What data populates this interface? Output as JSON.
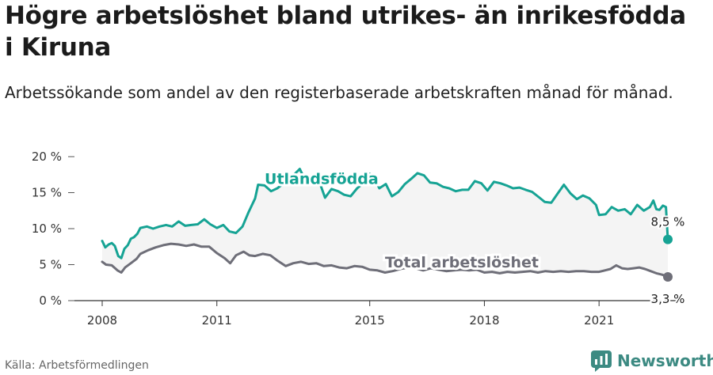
{
  "header": {
    "title": "Högre arbetslöshet bland utrikes- än inrikesfödda i Kiruna",
    "subtitle": "Arbetssökande som andel av den registerbaserade arbetskraften månad för månad."
  },
  "footer": {
    "source": "Källa: Arbetsförmedlingen",
    "brand": "Newsworthy",
    "brand_icon": "newsworthy-logo-icon",
    "brand_color": "#3c8a82"
  },
  "chart_data": {
    "type": "line",
    "title": "",
    "xlabel": "",
    "ylabel": "",
    "x_unit": "year",
    "xlim": [
      2008,
      2022.8
    ],
    "ylim": [
      0,
      20
    ],
    "x_ticks": [
      2008,
      2011,
      2015,
      2018,
      2021
    ],
    "x_tick_labels": [
      "2008",
      "2011",
      "2015",
      "2018",
      "2021"
    ],
    "y_ticks": [
      0,
      5,
      10,
      15,
      20
    ],
    "y_tick_labels": [
      "0 %",
      "5 %",
      "10 %",
      "15 %",
      "20 %"
    ],
    "grid": false,
    "shaded_between_series": true,
    "shade_color": "#f4f4f4",
    "series": [
      {
        "name": "Utlandsfödda",
        "color": "#16a394",
        "end_label": "8,5 %",
        "points": [
          [
            2008.0,
            8.3
          ],
          [
            2008.08,
            7.4
          ],
          [
            2008.17,
            7.8
          ],
          [
            2008.25,
            8.0
          ],
          [
            2008.33,
            7.6
          ],
          [
            2008.42,
            6.2
          ],
          [
            2008.5,
            5.9
          ],
          [
            2008.58,
            7.2
          ],
          [
            2008.67,
            7.7
          ],
          [
            2008.75,
            8.6
          ],
          [
            2008.83,
            8.8
          ],
          [
            2008.92,
            9.3
          ],
          [
            2009.0,
            10.1
          ],
          [
            2009.17,
            10.3
          ],
          [
            2009.33,
            10.0
          ],
          [
            2009.5,
            10.3
          ],
          [
            2009.67,
            10.5
          ],
          [
            2009.83,
            10.3
          ],
          [
            2010.0,
            11.0
          ],
          [
            2010.17,
            10.4
          ],
          [
            2010.33,
            10.5
          ],
          [
            2010.5,
            10.6
          ],
          [
            2010.67,
            11.3
          ],
          [
            2010.83,
            10.6
          ],
          [
            2011.0,
            10.1
          ],
          [
            2011.17,
            10.5
          ],
          [
            2011.33,
            9.6
          ],
          [
            2011.5,
            9.4
          ],
          [
            2011.67,
            10.3
          ],
          [
            2011.83,
            12.3
          ],
          [
            2012.0,
            14.2
          ],
          [
            2012.08,
            16.1
          ],
          [
            2012.25,
            16.0
          ],
          [
            2012.42,
            15.2
          ],
          [
            2012.58,
            15.6
          ],
          [
            2012.75,
            16.3
          ],
          [
            2012.92,
            17.2
          ],
          [
            2013.0,
            17.4
          ],
          [
            2013.17,
            18.3
          ],
          [
            2013.33,
            16.5
          ],
          [
            2013.5,
            16.9
          ],
          [
            2013.67,
            16.7
          ],
          [
            2013.83,
            14.3
          ],
          [
            2014.0,
            15.5
          ],
          [
            2014.17,
            15.2
          ],
          [
            2014.33,
            14.7
          ],
          [
            2014.5,
            14.5
          ],
          [
            2014.67,
            15.6
          ],
          [
            2014.83,
            16.3
          ],
          [
            2014.92,
            17.8
          ],
          [
            2015.08,
            17.4
          ],
          [
            2015.25,
            15.6
          ],
          [
            2015.42,
            16.2
          ],
          [
            2015.58,
            14.5
          ],
          [
            2015.75,
            15.1
          ],
          [
            2015.92,
            16.2
          ],
          [
            2016.08,
            16.9
          ],
          [
            2016.25,
            17.7
          ],
          [
            2016.42,
            17.4
          ],
          [
            2016.58,
            16.4
          ],
          [
            2016.75,
            16.3
          ],
          [
            2016.92,
            15.8
          ],
          [
            2017.08,
            15.6
          ],
          [
            2017.25,
            15.2
          ],
          [
            2017.42,
            15.4
          ],
          [
            2017.58,
            15.4
          ],
          [
            2017.75,
            16.6
          ],
          [
            2017.92,
            16.3
          ],
          [
            2018.08,
            15.3
          ],
          [
            2018.25,
            16.5
          ],
          [
            2018.42,
            16.3
          ],
          [
            2018.58,
            16.0
          ],
          [
            2018.75,
            15.6
          ],
          [
            2018.92,
            15.7
          ],
          [
            2019.08,
            15.4
          ],
          [
            2019.25,
            15.1
          ],
          [
            2019.42,
            14.4
          ],
          [
            2019.58,
            13.7
          ],
          [
            2019.75,
            13.6
          ],
          [
            2019.92,
            14.9
          ],
          [
            2020.08,
            16.1
          ],
          [
            2020.25,
            14.9
          ],
          [
            2020.42,
            14.1
          ],
          [
            2020.58,
            14.6
          ],
          [
            2020.75,
            14.2
          ],
          [
            2020.92,
            13.3
          ],
          [
            2021.0,
            11.9
          ],
          [
            2021.17,
            12.0
          ],
          [
            2021.33,
            13.0
          ],
          [
            2021.5,
            12.5
          ],
          [
            2021.67,
            12.7
          ],
          [
            2021.83,
            12.0
          ],
          [
            2022.0,
            13.3
          ],
          [
            2022.17,
            12.5
          ],
          [
            2022.33,
            13.0
          ],
          [
            2022.42,
            13.9
          ],
          [
            2022.5,
            12.7
          ],
          [
            2022.58,
            12.6
          ],
          [
            2022.67,
            13.2
          ],
          [
            2022.75,
            13.0
          ],
          [
            2022.8,
            8.5
          ]
        ]
      },
      {
        "name": "Total arbetslöshet",
        "color": "#6e6e78",
        "end_label": "3,3 %",
        "points": [
          [
            2008.0,
            5.4
          ],
          [
            2008.1,
            5.0
          ],
          [
            2008.25,
            4.9
          ],
          [
            2008.4,
            4.2
          ],
          [
            2008.5,
            3.9
          ],
          [
            2008.6,
            4.6
          ],
          [
            2008.75,
            5.2
          ],
          [
            2008.9,
            5.8
          ],
          [
            2009.0,
            6.5
          ],
          [
            2009.2,
            7.0
          ],
          [
            2009.4,
            7.4
          ],
          [
            2009.6,
            7.7
          ],
          [
            2009.8,
            7.9
          ],
          [
            2010.0,
            7.8
          ],
          [
            2010.2,
            7.6
          ],
          [
            2010.4,
            7.8
          ],
          [
            2010.6,
            7.5
          ],
          [
            2010.8,
            7.5
          ],
          [
            2011.0,
            6.6
          ],
          [
            2011.2,
            5.9
          ],
          [
            2011.35,
            5.2
          ],
          [
            2011.5,
            6.3
          ],
          [
            2011.7,
            6.8
          ],
          [
            2011.85,
            6.3
          ],
          [
            2012.0,
            6.2
          ],
          [
            2012.2,
            6.5
          ],
          [
            2012.4,
            6.3
          ],
          [
            2012.6,
            5.5
          ],
          [
            2012.8,
            4.8
          ],
          [
            2013.0,
            5.2
          ],
          [
            2013.2,
            5.4
          ],
          [
            2013.4,
            5.1
          ],
          [
            2013.6,
            5.2
          ],
          [
            2013.8,
            4.8
          ],
          [
            2014.0,
            4.9
          ],
          [
            2014.2,
            4.6
          ],
          [
            2014.4,
            4.5
          ],
          [
            2014.6,
            4.8
          ],
          [
            2014.8,
            4.7
          ],
          [
            2015.0,
            4.3
          ],
          [
            2015.2,
            4.2
          ],
          [
            2015.4,
            3.9
          ],
          [
            2015.6,
            4.1
          ],
          [
            2015.8,
            4.4
          ],
          [
            2016.0,
            4.6
          ],
          [
            2016.2,
            4.5
          ],
          [
            2016.4,
            4.2
          ],
          [
            2016.6,
            4.5
          ],
          [
            2016.8,
            4.3
          ],
          [
            2017.0,
            4.1
          ],
          [
            2017.2,
            4.2
          ],
          [
            2017.4,
            4.3
          ],
          [
            2017.6,
            4.2
          ],
          [
            2017.8,
            4.3
          ],
          [
            2018.0,
            3.9
          ],
          [
            2018.2,
            4.0
          ],
          [
            2018.4,
            3.8
          ],
          [
            2018.6,
            4.0
          ],
          [
            2018.8,
            3.9
          ],
          [
            2019.0,
            4.0
          ],
          [
            2019.2,
            4.1
          ],
          [
            2019.4,
            3.9
          ],
          [
            2019.6,
            4.1
          ],
          [
            2019.8,
            4.0
          ],
          [
            2020.0,
            4.1
          ],
          [
            2020.2,
            4.0
          ],
          [
            2020.4,
            4.1
          ],
          [
            2020.6,
            4.1
          ],
          [
            2020.8,
            4.0
          ],
          [
            2021.0,
            4.0
          ],
          [
            2021.15,
            4.2
          ],
          [
            2021.3,
            4.4
          ],
          [
            2021.45,
            4.9
          ],
          [
            2021.6,
            4.5
          ],
          [
            2021.75,
            4.4
          ],
          [
            2021.9,
            4.5
          ],
          [
            2022.05,
            4.6
          ],
          [
            2022.2,
            4.4
          ],
          [
            2022.35,
            4.1
          ],
          [
            2022.5,
            3.8
          ],
          [
            2022.65,
            3.6
          ],
          [
            2022.8,
            3.3
          ]
        ]
      }
    ]
  }
}
